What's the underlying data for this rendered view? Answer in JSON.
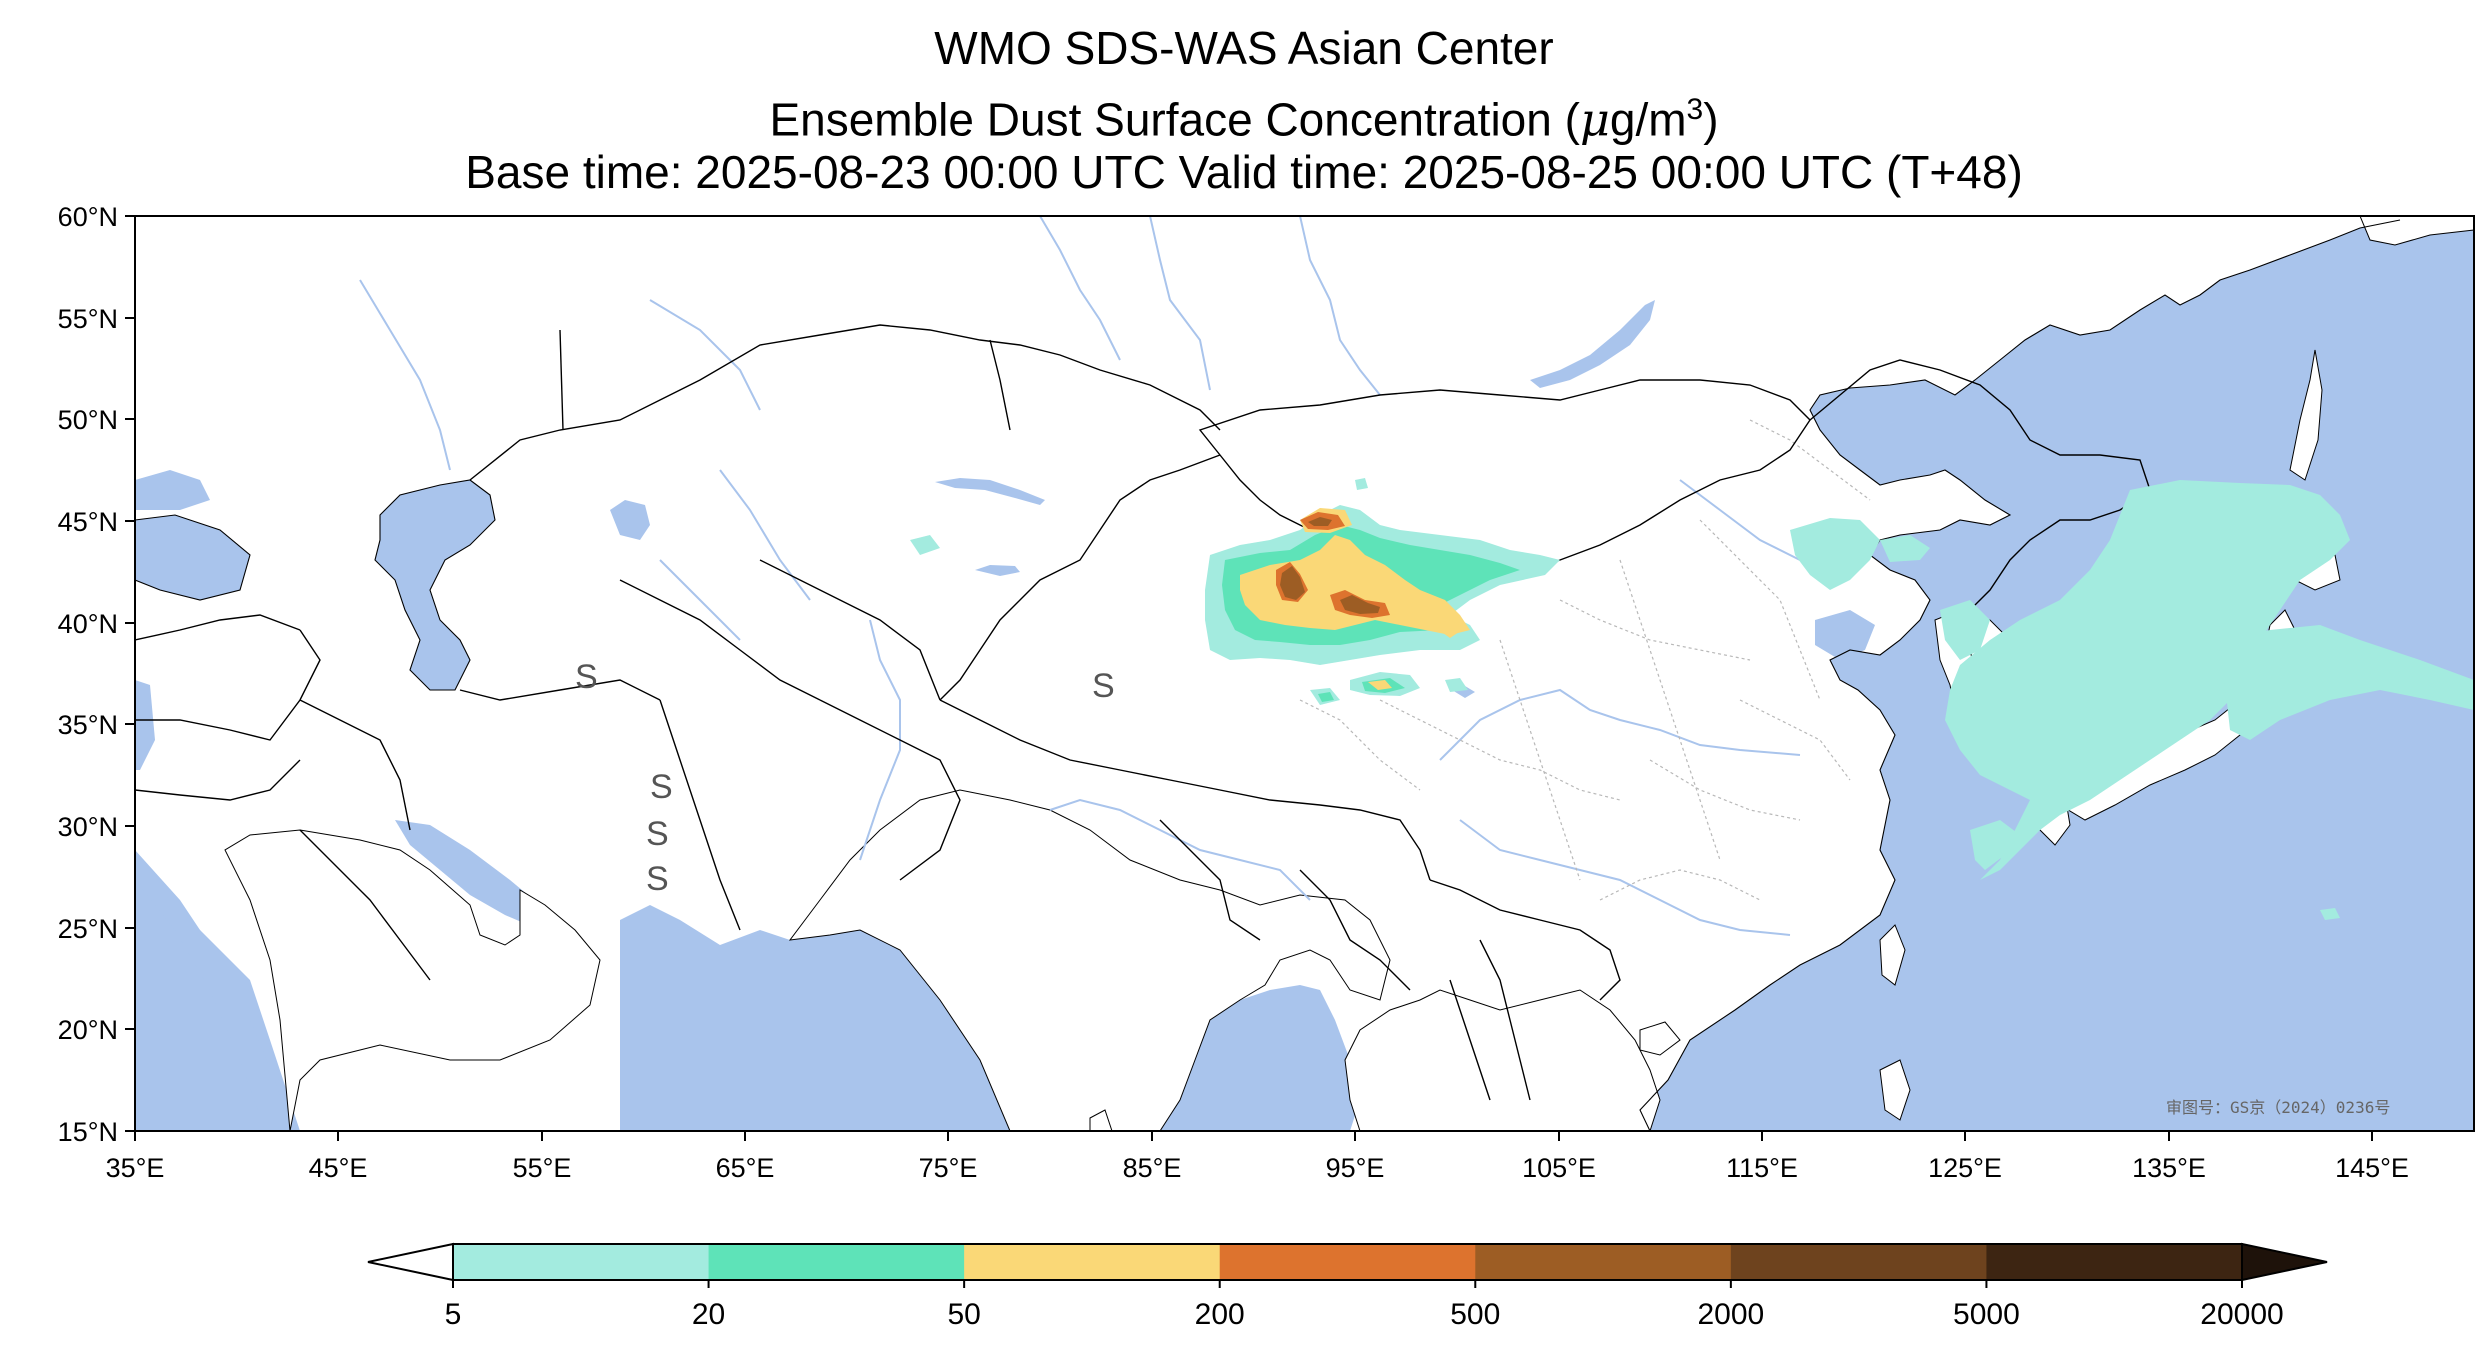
{
  "title": {
    "line1": "WMO SDS-WAS Asian Center",
    "line2_prefix": "Ensemble Dust Surface Concentration (",
    "line2_mu": "μ",
    "line2_unit": "g/m",
    "line2_sup": "3",
    "line2_suffix": ")",
    "line3": "Base time: 2025-08-23 00:00 UTC Valid time: 2025-08-25 00:00 UTC (T+48)"
  },
  "map": {
    "extent": {
      "lon": [
        35,
        150
      ],
      "lat": [
        15,
        60
      ]
    },
    "lon_ticks": [
      "35°E",
      "45°E",
      "55°E",
      "65°E",
      "75°E",
      "85°E",
      "95°E",
      "105°E",
      "115°E",
      "125°E",
      "135°E",
      "145°E"
    ],
    "lat_ticks": [
      "60°N",
      "55°N",
      "50°N",
      "45°N",
      "40°N",
      "35°N",
      "30°N",
      "25°N",
      "20°N",
      "15°N"
    ],
    "ocean_color": "#a9c4ec",
    "land_color": "#ffffff",
    "watermark": "审图号：GS京（2024）0236号"
  },
  "colorbar": {
    "labels": [
      "5",
      "20",
      "50",
      "200",
      "500",
      "2000",
      "5000",
      "20000"
    ],
    "colors": [
      "#a3ebdf",
      "#5ee3b8",
      "#fad877",
      "#dd732e",
      "#9d5d24",
      "#6e431e",
      "#3d2512"
    ],
    "under_color": "#ffffff",
    "over_color": "#1e120a"
  }
}
